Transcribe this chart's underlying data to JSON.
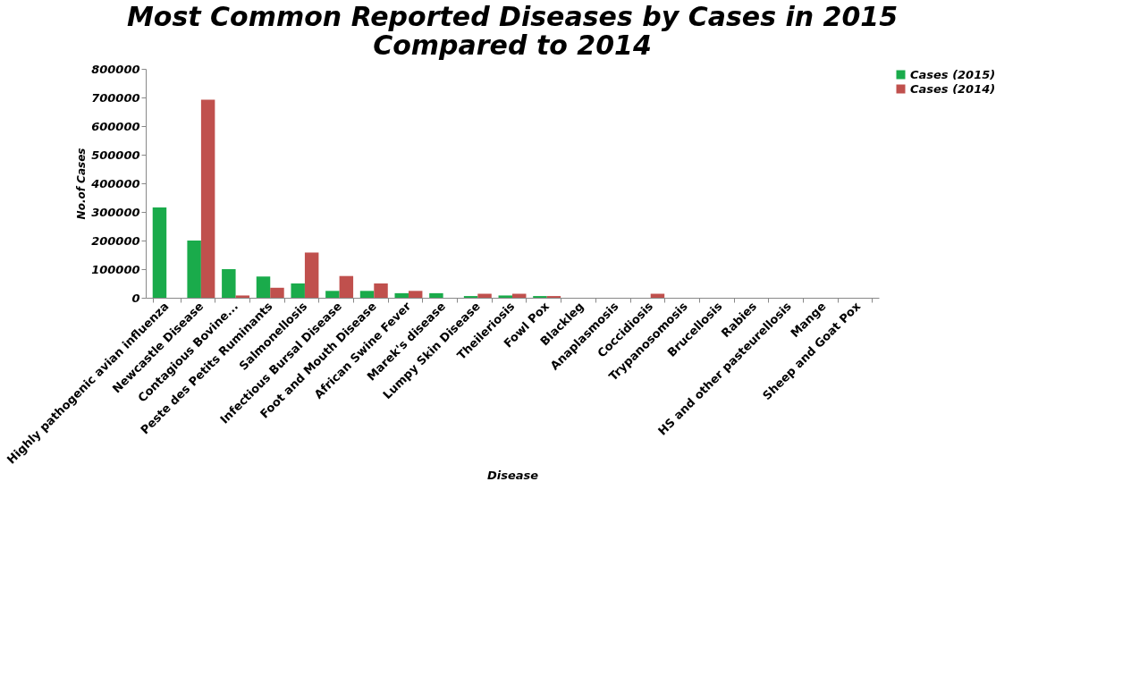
{
  "chart_data": {
    "type": "bar",
    "title": [
      "Most Common Reported Diseases by Cases in 2015",
      "Compared to 2014"
    ],
    "xlabel": "Disease",
    "ylabel": "No.of Cases",
    "categories": [
      "Highly pathogenic avian influenza",
      "Newcastle Disease",
      "Contagious Bovine...",
      "Peste des Petits Ruminants",
      "Salmonellosis",
      "Infectious Bursal Disease",
      "Foot and Mouth Disease",
      "African Swine Fever",
      "Marek's disease",
      "Lumpy Skin Disease",
      "Theileriosis",
      "Fowl Pox",
      "Blackleg",
      "Anaplasmosis",
      "Coccidiosis",
      "Trypanosomosis",
      "Brucellosis",
      "Rabies",
      "HS and other pasteurellosis",
      "Mange",
      "Sheep and Goat Pox"
    ],
    "series": [
      {
        "name": "Cases (2015)",
        "color": "#1aab4b",
        "values": [
          316000,
          200000,
          100000,
          74000,
          50000,
          24000,
          24000,
          16000,
          16000,
          6000,
          8000,
          6000,
          0,
          0,
          0,
          0,
          0,
          0,
          0,
          0,
          0
        ]
      },
      {
        "name": "Cases (2014)",
        "color": "#c0504d",
        "values": [
          0,
          692000,
          8000,
          35000,
          158000,
          76000,
          50000,
          24000,
          0,
          14000,
          14000,
          6000,
          0,
          0,
          14000,
          0,
          0,
          0,
          0,
          0,
          0
        ]
      }
    ],
    "ylim": [
      0,
      800000
    ],
    "yticks": [
      0,
      100000,
      200000,
      300000,
      400000,
      500000,
      600000,
      700000,
      800000
    ],
    "grid": false,
    "legend": "right"
  }
}
